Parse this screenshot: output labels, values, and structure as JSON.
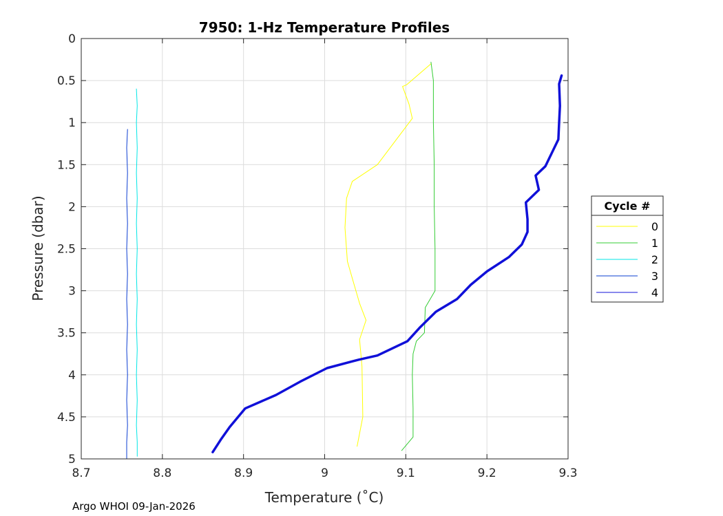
{
  "chart_data": {
    "type": "line",
    "title": "7950: 1-Hz Temperature Profiles",
    "xlabel": "Temperature (˚C)",
    "ylabel": "Pressure (dbar)",
    "xlim": [
      8.7,
      9.3
    ],
    "ylim": [
      0,
      5
    ],
    "y_reversed": true,
    "grid": true,
    "xticks": [
      "8.7",
      "8.8",
      "8.9",
      "9",
      "9.1",
      "9.2",
      "9.3"
    ],
    "yticks": [
      "0",
      "0.5",
      "1",
      "1.5",
      "2",
      "2.5",
      "3",
      "3.5",
      "4",
      "4.5",
      "5"
    ],
    "legend": {
      "title": "Cycle #",
      "placement": "outside-right"
    },
    "series": [
      {
        "name": "0",
        "color": "#ffff00",
        "width": 1,
        "points": [
          [
            9.131,
            0.3
          ],
          [
            9.101,
            0.55
          ],
          [
            9.096,
            0.57
          ],
          [
            9.104,
            0.78
          ],
          [
            9.108,
            0.95
          ],
          [
            9.065,
            1.5
          ],
          [
            9.034,
            1.7
          ],
          [
            9.027,
            1.9
          ],
          [
            9.025,
            2.25
          ],
          [
            9.028,
            2.65
          ],
          [
            9.037,
            2.95
          ],
          [
            9.043,
            3.15
          ],
          [
            9.051,
            3.35
          ],
          [
            9.043,
            3.58
          ],
          [
            9.046,
            3.9
          ],
          [
            9.047,
            4.5
          ],
          [
            9.04,
            4.85
          ]
        ]
      },
      {
        "name": "1",
        "color": "#33cc33",
        "width": 1,
        "points": [
          [
            9.131,
            0.28
          ],
          [
            9.134,
            0.5
          ],
          [
            9.134,
            1.0
          ],
          [
            9.135,
            1.5
          ],
          [
            9.135,
            2.0
          ],
          [
            9.136,
            2.5
          ],
          [
            9.136,
            3.0
          ],
          [
            9.124,
            3.2
          ],
          [
            9.123,
            3.5
          ],
          [
            9.113,
            3.6
          ],
          [
            9.109,
            3.75
          ],
          [
            9.108,
            4.0
          ],
          [
            9.109,
            4.4
          ],
          [
            9.109,
            4.74
          ],
          [
            9.095,
            4.9
          ]
        ]
      },
      {
        "name": "2",
        "color": "#00e6e6",
        "width": 1,
        "points": [
          [
            8.768,
            0.6
          ],
          [
            8.769,
            0.8
          ],
          [
            8.768,
            1.0
          ],
          [
            8.769,
            1.3
          ],
          [
            8.768,
            1.6
          ],
          [
            8.769,
            1.9
          ],
          [
            8.768,
            2.2
          ],
          [
            8.769,
            2.5
          ],
          [
            8.768,
            2.8
          ],
          [
            8.769,
            3.1
          ],
          [
            8.768,
            3.4
          ],
          [
            8.769,
            3.7
          ],
          [
            8.768,
            4.0
          ],
          [
            8.769,
            4.3
          ],
          [
            8.768,
            4.6
          ],
          [
            8.769,
            4.8
          ],
          [
            8.769,
            4.97
          ]
        ]
      },
      {
        "name": "3",
        "color": "#0a3cd2",
        "width": 1,
        "points": [
          [
            8.757,
            1.08
          ],
          [
            8.756,
            1.3
          ],
          [
            8.757,
            1.6
          ],
          [
            8.756,
            1.9
          ],
          [
            8.757,
            2.2
          ],
          [
            8.756,
            2.5
          ],
          [
            8.757,
            2.8
          ],
          [
            8.756,
            3.1
          ],
          [
            8.757,
            3.4
          ],
          [
            8.756,
            3.7
          ],
          [
            8.757,
            4.0
          ],
          [
            8.756,
            4.3
          ],
          [
            8.757,
            4.6
          ],
          [
            8.756,
            4.8
          ],
          [
            8.756,
            5.0
          ]
        ]
      },
      {
        "name": "4",
        "color": "#1010d8",
        "width": 3.5,
        "points": [
          [
            9.292,
            0.44
          ],
          [
            9.289,
            0.54
          ],
          [
            9.29,
            0.8
          ],
          [
            9.289,
            1.0
          ],
          [
            9.288,
            1.2
          ],
          [
            9.272,
            1.52
          ],
          [
            9.26,
            1.63
          ],
          [
            9.264,
            1.8
          ],
          [
            9.248,
            1.95
          ],
          [
            9.25,
            2.15
          ],
          [
            9.25,
            2.3
          ],
          [
            9.243,
            2.45
          ],
          [
            9.227,
            2.6
          ],
          [
            9.2,
            2.77
          ],
          [
            9.18,
            2.93
          ],
          [
            9.163,
            3.1
          ],
          [
            9.137,
            3.25
          ],
          [
            9.117,
            3.44
          ],
          [
            9.102,
            3.6
          ],
          [
            9.065,
            3.77
          ],
          [
            9.042,
            3.82
          ],
          [
            9.003,
            3.92
          ],
          [
            8.97,
            4.08
          ],
          [
            8.94,
            4.24
          ],
          [
            8.902,
            4.4
          ],
          [
            8.883,
            4.62
          ],
          [
            8.872,
            4.77
          ],
          [
            8.862,
            4.92
          ]
        ]
      }
    ]
  },
  "footer": "Argo WHOI 09-Jan-2026"
}
